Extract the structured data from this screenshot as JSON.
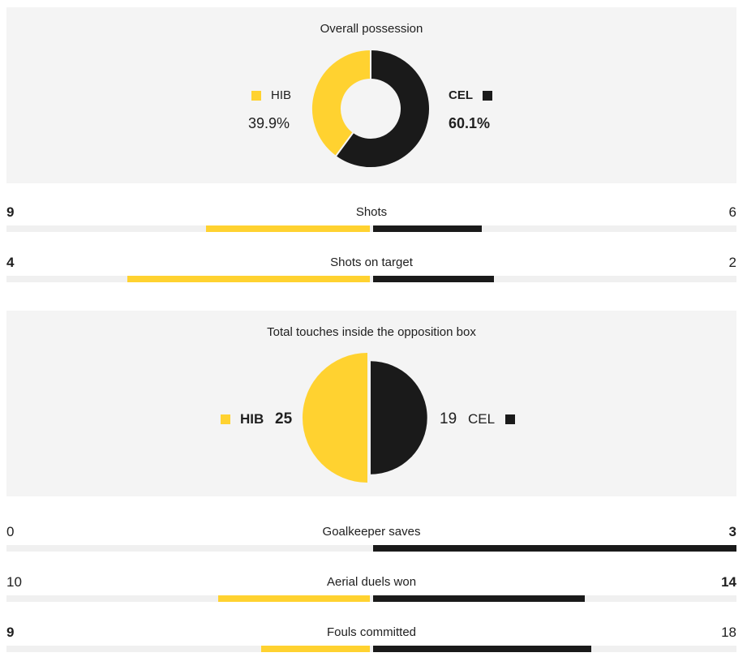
{
  "colors": {
    "home": "#ffd230",
    "away": "#1a1a1a",
    "panel_bg": "#f4f4f4",
    "track": "#f0f0f0"
  },
  "possession": {
    "title": "Overall possession",
    "home": {
      "team": "HIB",
      "value_label": "39.9%",
      "value": 39.9
    },
    "away": {
      "team": "CEL",
      "value_label": "60.1%",
      "value": 60.1
    }
  },
  "touches": {
    "title": "Total touches inside the opposition box",
    "home": {
      "team": "HIB",
      "value": 25
    },
    "away": {
      "team": "CEL",
      "value": 19
    }
  },
  "stats_top": [
    {
      "label": "Shots",
      "home": 9,
      "away": 6,
      "bold": "home",
      "max": 20
    },
    {
      "label": "Shots on target",
      "home": 4,
      "away": 2,
      "bold": "home",
      "max": 6
    }
  ],
  "stats_bottom": [
    {
      "label": "Goalkeeper saves",
      "home": 0,
      "away": 3,
      "bold": "away",
      "max": 3
    },
    {
      "label": "Aerial duels won",
      "home": 10,
      "away": 14,
      "bold": "away",
      "max": 24
    },
    {
      "label": "Fouls committed",
      "home": 9,
      "away": 18,
      "bold": "home",
      "max": 30
    }
  ]
}
